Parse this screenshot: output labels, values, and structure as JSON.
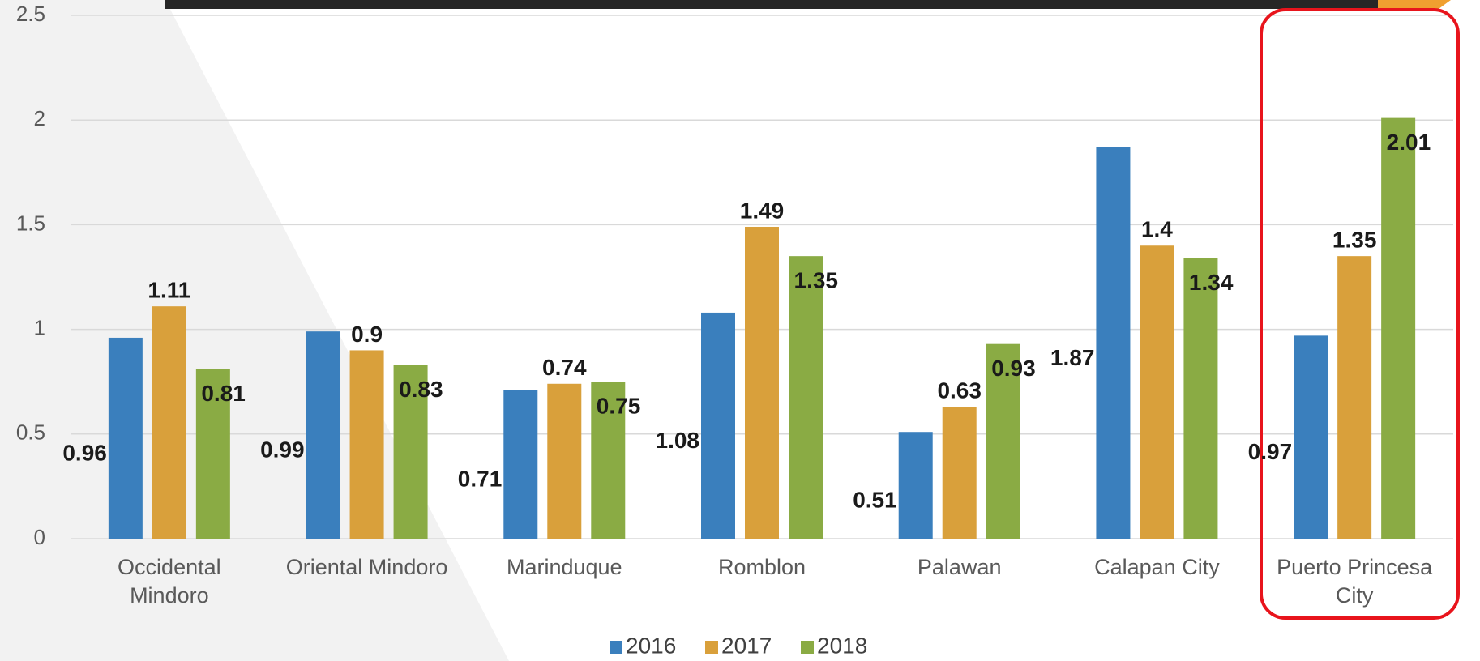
{
  "chart_data": {
    "type": "bar",
    "categories": [
      "Occidental Mindoro",
      "Oriental Mindoro",
      "Marinduque",
      "Romblon",
      "Palawan",
      "Calapan City",
      "Puerto Princesa City"
    ],
    "series": [
      {
        "name": "2016",
        "color": "#3a7fbd",
        "values": [
          0.96,
          0.99,
          0.71,
          1.08,
          0.51,
          1.87,
          0.97
        ]
      },
      {
        "name": "2017",
        "color": "#d9a03b",
        "values": [
          1.11,
          0.9,
          0.74,
          1.49,
          0.63,
          1.4,
          1.35
        ]
      },
      {
        "name": "2018",
        "color": "#8aab44",
        "values": [
          0.81,
          0.83,
          0.75,
          1.35,
          0.93,
          1.34,
          2.01
        ]
      }
    ],
    "ylim": [
      0,
      2.5
    ],
    "yticks": [
      0,
      0.5,
      1,
      1.5,
      2,
      2.5
    ],
    "grid": true,
    "legend": "bottom"
  }
}
